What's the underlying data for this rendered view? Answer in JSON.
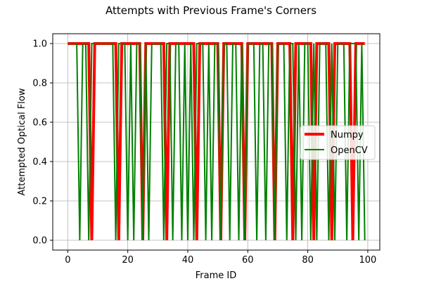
{
  "chart_data": {
    "type": "line",
    "title": "Attempts with Previous Frame's Corners",
    "xlabel": "Frame ID",
    "ylabel": "Attempted Optical Flow",
    "xlim": [
      -5,
      104
    ],
    "ylim": [
      -0.05,
      1.05
    ],
    "xticks": [
      0,
      20,
      40,
      60,
      80,
      100
    ],
    "yticks": [
      0.0,
      0.2,
      0.4,
      0.6,
      0.8,
      1.0
    ],
    "xtick_labels": [
      "0",
      "20",
      "40",
      "60",
      "80",
      "100"
    ],
    "ytick_labels": [
      "0.0",
      "0.2",
      "0.4",
      "0.6",
      "0.8",
      "1.0"
    ],
    "grid": true,
    "legend_position": "center-right",
    "x": [
      0,
      1,
      2,
      3,
      4,
      5,
      6,
      7,
      8,
      9,
      10,
      11,
      12,
      13,
      14,
      15,
      16,
      17,
      18,
      19,
      20,
      21,
      22,
      23,
      24,
      25,
      26,
      27,
      28,
      29,
      30,
      31,
      32,
      33,
      34,
      35,
      36,
      37,
      38,
      39,
      40,
      41,
      42,
      43,
      44,
      45,
      46,
      47,
      48,
      49,
      50,
      51,
      52,
      53,
      54,
      55,
      56,
      57,
      58,
      59,
      60,
      61,
      62,
      63,
      64,
      65,
      66,
      67,
      68,
      69,
      70,
      71,
      72,
      73,
      74,
      75,
      76,
      77,
      78,
      79,
      80,
      81,
      82,
      83,
      84,
      85,
      86,
      87,
      88,
      89,
      90,
      91,
      92,
      93,
      94,
      95,
      96,
      97,
      98,
      99
    ],
    "series": [
      {
        "name": "Numpy",
        "color": "#ff0000",
        "values": [
          1,
          1,
          1,
          1,
          1,
          1,
          1,
          1,
          0,
          1,
          1,
          1,
          1,
          1,
          1,
          1,
          1,
          0,
          1,
          1,
          1,
          1,
          1,
          1,
          1,
          0,
          1,
          1,
          1,
          1,
          1,
          1,
          1,
          0,
          1,
          1,
          1,
          1,
          1,
          1,
          1,
          1,
          1,
          0,
          1,
          1,
          1,
          1,
          1,
          1,
          1,
          0,
          1,
          1,
          1,
          1,
          1,
          1,
          1,
          0,
          1,
          1,
          1,
          1,
          1,
          1,
          1,
          1,
          1,
          0,
          1,
          1,
          1,
          1,
          1,
          0,
          1,
          1,
          1,
          1,
          1,
          1,
          0,
          1,
          1,
          1,
          1,
          1,
          0,
          1,
          1,
          1,
          1,
          1,
          1,
          0,
          1,
          1,
          1,
          1
        ]
      },
      {
        "name": "OpenCV",
        "color": "#008000",
        "values": [
          1,
          1,
          1,
          1,
          0,
          1,
          1,
          0,
          1,
          1,
          1,
          1,
          1,
          1,
          1,
          1,
          0,
          1,
          1,
          1,
          0,
          1,
          0,
          1,
          1,
          0,
          1,
          0,
          1,
          1,
          1,
          1,
          0,
          1,
          1,
          0,
          1,
          1,
          0,
          1,
          0,
          1,
          0,
          1,
          1,
          1,
          0,
          1,
          0,
          1,
          1,
          0,
          1,
          1,
          0,
          1,
          1,
          0,
          1,
          0,
          1,
          1,
          1,
          0,
          1,
          1,
          0,
          1,
          1,
          0,
          1,
          1,
          1,
          0,
          1,
          1,
          0,
          1,
          0,
          1,
          1,
          0,
          1,
          0,
          1,
          1,
          1,
          0,
          1,
          0,
          1,
          1,
          1,
          0,
          1,
          1,
          1,
          0,
          1,
          0
        ]
      }
    ]
  }
}
